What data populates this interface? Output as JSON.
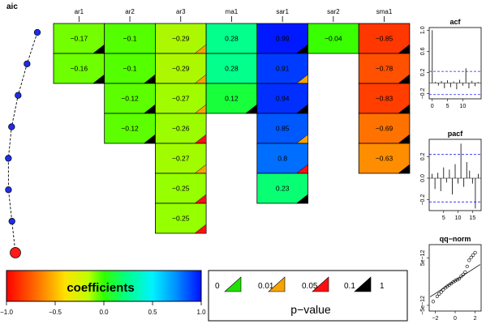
{
  "aic_panel": {
    "title": "aic",
    "steps": 8
  },
  "colors": {
    "best_point": "#ff1a1a",
    "point": "#1f2ee6",
    "p_0_01": "#22e000",
    "p_0_05": "#f5a300",
    "p_0_1": "#ff1010",
    "p_1": "#000000"
  },
  "chart_data": [
    {
      "type": "heatmap",
      "title": "",
      "columns": [
        "ar1",
        "ar2",
        "ar3",
        "ma1",
        "sar1",
        "sar2",
        "sma1"
      ],
      "rows": [
        [
          -0.17,
          -0.1,
          -0.29,
          0.28,
          0.99,
          -0.04,
          -0.85
        ],
        [
          -0.16,
          -0.1,
          -0.29,
          0.28,
          0.91,
          null,
          -0.78
        ],
        [
          null,
          -0.12,
          -0.27,
          0.12,
          0.94,
          null,
          -0.83
        ],
        [
          null,
          -0.12,
          -0.26,
          null,
          0.85,
          null,
          -0.69
        ],
        [
          null,
          null,
          -0.27,
          null,
          0.8,
          null,
          -0.63
        ],
        [
          null,
          null,
          -0.25,
          null,
          0.23,
          null,
          null
        ],
        [
          null,
          null,
          -0.25,
          null,
          null,
          null,
          null
        ]
      ],
      "labels": [
        [
          "−0.17",
          "−0.1",
          "−0.29",
          "0.28",
          "0.99",
          "−0.04",
          "−0.85"
        ],
        [
          "−0.16",
          "−0.1",
          "−0.29",
          "0.28",
          "0.91",
          "",
          "−0.78"
        ],
        [
          "",
          "−0.12",
          "−0.27",
          "0.12",
          "0.94",
          "",
          "−0.83"
        ],
        [
          "",
          "−0.12",
          "−0.26",
          "",
          "0.85",
          "",
          "−0.69"
        ],
        [
          "",
          "",
          "−0.27",
          "",
          "0.8",
          "",
          "−0.63"
        ],
        [
          "",
          "",
          "−0.25",
          "",
          "0.23",
          "",
          ""
        ],
        [
          "",
          "",
          "−0.25",
          "",
          "",
          "",
          ""
        ]
      ],
      "pvalue_class": [
        [
          "p_1",
          "none",
          "p_0_05",
          "none",
          "p_1",
          "none",
          "p_1"
        ],
        [
          "p_1",
          "p_1",
          "p_0_05",
          "none",
          "p_0_05",
          "none",
          "p_1"
        ],
        [
          null,
          "p_1",
          "p_0_05",
          "p_1",
          "p_1",
          null,
          "p_1"
        ],
        [
          null,
          "p_1",
          "p_0_1",
          null,
          "p_0_05",
          null,
          "p_1"
        ],
        [
          null,
          null,
          "p_0_05",
          null,
          "p_0_1",
          null,
          "p_1"
        ],
        [
          null,
          null,
          "p_0_1",
          null,
          "p_1",
          null,
          null
        ],
        [
          null,
          null,
          "p_0_1",
          null,
          null,
          null,
          null
        ]
      ],
      "aic_points": [
        0,
        1,
        2,
        3,
        4,
        5,
        6,
        7
      ]
    },
    {
      "type": "bar",
      "title": "acf",
      "lags": [
        1,
        2,
        3,
        4,
        5,
        6,
        7,
        8,
        9,
        10,
        11,
        12,
        13,
        14,
        15
      ],
      "values": [
        0.02,
        -0.05,
        0.04,
        -0.1,
        0.05,
        -0.08,
        0.03,
        -0.12,
        0.06,
        -0.05,
        0.28,
        -0.1,
        0.04,
        -0.06,
        0.02
      ],
      "lag0": 1.0,
      "confidence": 0.22,
      "xticks": [
        "0",
        "5",
        "10"
      ],
      "xtick_values": [
        0,
        5,
        10
      ],
      "yticks": [
        "−0.2",
        "0.2",
        "0.6",
        "1.0"
      ],
      "ytick_values": [
        -0.2,
        0.2,
        0.6,
        1.0
      ],
      "ylim": [
        -0.3,
        1.05
      ]
    },
    {
      "type": "bar",
      "title": "pacf",
      "lags": [
        1,
        2,
        3,
        4,
        5,
        6,
        7,
        8,
        9,
        10,
        11,
        12,
        13,
        14,
        15,
        16,
        17
      ],
      "values": [
        0.04,
        -0.1,
        0.05,
        -0.12,
        0.1,
        -0.04,
        0.08,
        -0.15,
        0.13,
        -0.05,
        0.32,
        -0.08,
        0.15,
        0.07,
        -0.05,
        -0.28,
        0.04
      ],
      "confidence": 0.22,
      "xticks": [
        "5",
        "10",
        "15"
      ],
      "xtick_values": [
        5,
        10,
        15
      ],
      "yticks": [
        "−0.2",
        "0.0",
        "0.2"
      ],
      "ytick_values": [
        -0.2,
        0.0,
        0.2
      ],
      "ylim": [
        -0.3,
        0.36
      ]
    },
    {
      "type": "scatter",
      "title": "qq−norm",
      "x": [
        -2.2,
        -1.8,
        -1.6,
        -1.4,
        -1.2,
        -1.0,
        -0.8,
        -0.6,
        -0.4,
        -0.2,
        0.0,
        0.2,
        0.4,
        0.6,
        0.8,
        1.0,
        1.2,
        1.4,
        1.6,
        1.8,
        2.0
      ],
      "y": [
        -4.2,
        -3.1,
        -2.6,
        -2.2,
        -1.7,
        -1.3,
        -1.0,
        -0.7,
        -0.4,
        -0.1,
        0.2,
        0.4,
        0.6,
        1.1,
        1.5,
        2.0,
        3.2,
        4.5,
        5.1,
        5.6,
        6.1
      ],
      "line": {
        "x": [
          -2.5,
          2.5
        ],
        "y": [
          -3.2,
          3.6
        ]
      },
      "xticks": [
        "−2",
        "0",
        "2"
      ],
      "xtick_values": [
        -2,
        0,
        2
      ],
      "yticks": [
        "−5e−12",
        "5e−12"
      ],
      "ytick_values": [
        -5,
        5
      ],
      "xlim": [
        -2.6,
        2.6
      ],
      "ylim": [
        -6.2,
        7.8
      ]
    }
  ],
  "colorbar": {
    "title": "coefficients",
    "ticks": [
      "−1.0",
      "−0.5",
      "0.0",
      "0.5",
      "1.0"
    ],
    "tick_values": [
      -1.0,
      -0.5,
      0.0,
      0.5,
      1.0
    ]
  },
  "pvalue_legend": {
    "title": "p−value",
    "labels": [
      "0",
      "0.01",
      "0.05",
      "0.1",
      "1"
    ],
    "classes": [
      "p_0_01",
      "p_0_05",
      "p_0_1",
      "p_1"
    ]
  }
}
